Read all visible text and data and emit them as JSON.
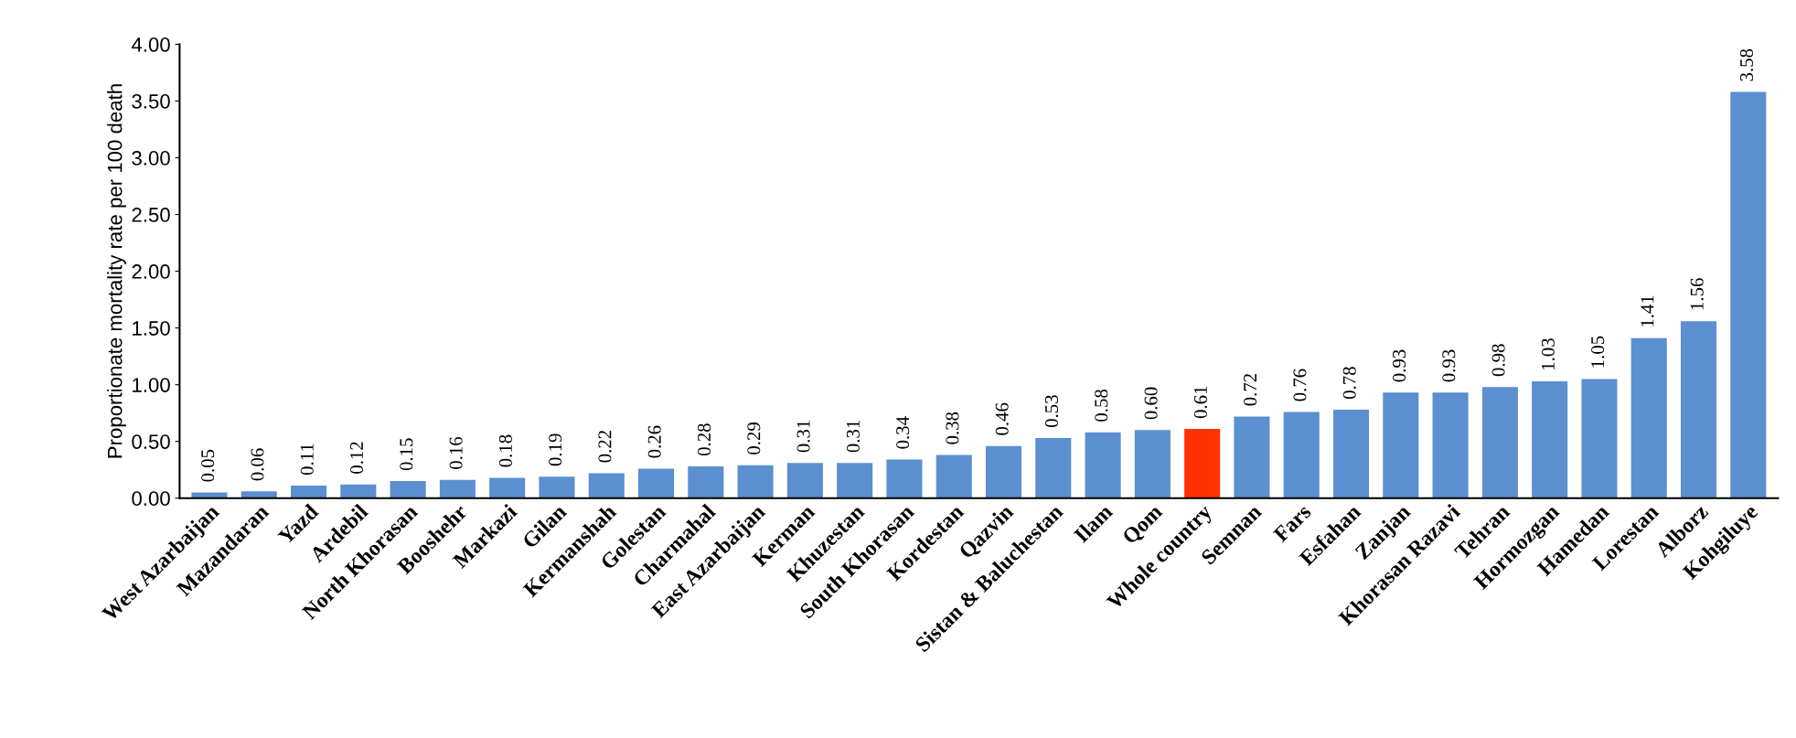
{
  "chart_data": {
    "type": "bar",
    "ylabel": "Proportionate mortality rate per 100 death",
    "categories": [
      "West Azarbaijan",
      "Mazandaran",
      "Yazd",
      "Ardebil",
      "North Khorasan",
      "Booshehr",
      "Markazi",
      "Gilan",
      "Kermanshah",
      "Golestan",
      "Charmahal",
      "East Azarbaijan",
      "Kerman",
      "Khuzestan",
      "South Khorasan",
      "Kordestan",
      "Qazvin",
      "Sistan & Baluchestan",
      "Ilam",
      "Qom",
      "Whole country",
      "Semnan",
      "Fars",
      "Esfahan",
      "Zanjan",
      "Khorasan Razavi",
      "Tehran",
      "Hormozgan",
      "Hamedan",
      "Lorestan",
      "Alborz",
      "Kohgiluye"
    ],
    "values": [
      0.05,
      0.06,
      0.11,
      0.12,
      0.15,
      0.16,
      0.18,
      0.19,
      0.22,
      0.26,
      0.28,
      0.29,
      0.31,
      0.31,
      0.34,
      0.38,
      0.46,
      0.53,
      0.58,
      0.6,
      0.61,
      0.72,
      0.76,
      0.78,
      0.93,
      0.93,
      0.98,
      1.03,
      1.05,
      1.41,
      1.56,
      3.58
    ],
    "value_labels": [
      "0.05",
      "0.06",
      "0.11",
      "0.12",
      "0.15",
      "0.16",
      "0.18",
      "0.19",
      "0.22",
      "0.26",
      "0.28",
      "0.29",
      "0.31",
      "0.31",
      "0.34",
      "0.38",
      "0.46",
      "0.53",
      "0.58",
      "0.60",
      "0.61",
      "0.72",
      "0.76",
      "0.78",
      "0.93",
      "0.93",
      "0.98",
      "1.03",
      "1.05",
      "1.41",
      "1.56",
      "3.58"
    ],
    "colors": [
      "#5b8fd0",
      "#5b8fd0",
      "#5b8fd0",
      "#5b8fd0",
      "#5b8fd0",
      "#5b8fd0",
      "#5b8fd0",
      "#5b8fd0",
      "#5b8fd0",
      "#5b8fd0",
      "#5b8fd0",
      "#5b8fd0",
      "#5b8fd0",
      "#5b8fd0",
      "#5b8fd0",
      "#5b8fd0",
      "#5b8fd0",
      "#5b8fd0",
      "#5b8fd0",
      "#5b8fd0",
      "#ff3300",
      "#5b8fd0",
      "#5b8fd0",
      "#5b8fd0",
      "#5b8fd0",
      "#5b8fd0",
      "#5b8fd0",
      "#5b8fd0",
      "#5b8fd0",
      "#5b8fd0",
      "#5b8fd0",
      "#5b8fd0"
    ],
    "ylim": [
      0,
      4
    ],
    "yticks": [
      {
        "value": 0,
        "label": "0.00"
      },
      {
        "value": 0.5,
        "label": "0.50"
      },
      {
        "value": 1,
        "label": "1.00"
      },
      {
        "value": 1.5,
        "label": "1.50"
      },
      {
        "value": 2,
        "label": "2.00"
      },
      {
        "value": 2.5,
        "label": "2.50"
      },
      {
        "value": 3,
        "label": "3.00"
      },
      {
        "value": 3.5,
        "label": "3.50"
      },
      {
        "value": 4,
        "label": "4.00"
      }
    ],
    "grid": false,
    "legend": false
  }
}
